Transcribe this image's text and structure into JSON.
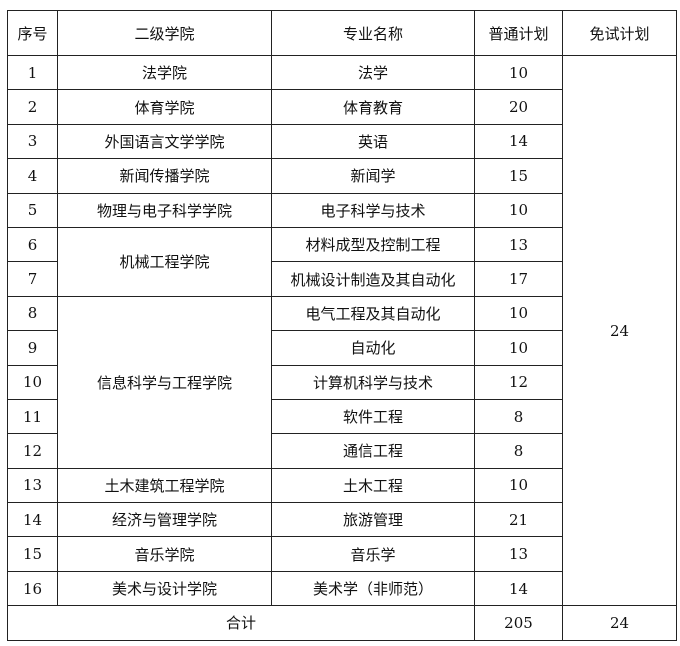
{
  "headers": [
    "序号",
    "二级学院",
    "专业名称",
    "普通计划",
    "免试计划"
  ],
  "rows": [
    {
      "no": "1",
      "college": "法学院",
      "major": "法学",
      "plan": "10"
    },
    {
      "no": "2",
      "college": "体育学院",
      "major": "体育教育",
      "plan": "20"
    },
    {
      "no": "3",
      "college": "外国语言文学学院",
      "major": "英语",
      "plan": "14"
    },
    {
      "no": "4",
      "college": "新闻传播学院",
      "major": "新闻学",
      "plan": "15"
    },
    {
      "no": "5",
      "college": "物理与电子科学学院",
      "major": "电子科学与技术",
      "plan": "10"
    },
    {
      "no": "6",
      "college": "机械工程学院",
      "major": "材料成型及控制工程",
      "plan": "13"
    },
    {
      "no": "7",
      "college": "",
      "major": "机械设计制造及其自动化",
      "plan": "17"
    },
    {
      "no": "8",
      "college": "信息科学与工程学院",
      "major": "电气工程及其自动化",
      "plan": "10"
    },
    {
      "no": "9",
      "college": "",
      "major": "自动化",
      "plan": "10"
    },
    {
      "no": "10",
      "college": "",
      "major": "计算机科学与技术",
      "plan": "12"
    },
    {
      "no": "11",
      "college": "",
      "major": "软件工程",
      "plan": "8"
    },
    {
      "no": "12",
      "college": "",
      "major": "通信工程",
      "plan": "8"
    },
    {
      "no": "13",
      "college": "土木建筑工程学院",
      "major": "土木工程",
      "plan": "10"
    },
    {
      "no": "14",
      "college": "经济与管理学院",
      "major": "旅游管理",
      "plan": "21"
    },
    {
      "no": "15",
      "college": "音乐学院",
      "major": "音乐学",
      "plan": "13"
    },
    {
      "no": "16",
      "college": "美术与设计学院",
      "major": "美术学（非师范）",
      "plan": "14"
    }
  ],
  "exempt_plan": "24",
  "total": {
    "label": "合计",
    "plan": "205",
    "exempt": "24"
  }
}
